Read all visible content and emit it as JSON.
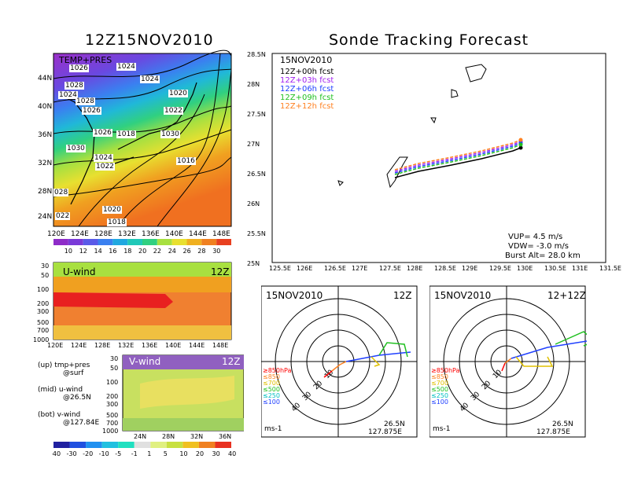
{
  "titles": {
    "left": "12Z15NOV2010",
    "right": "Sonde Tracking Forecast"
  },
  "map_panel": {
    "label": "TEMP+PRES",
    "lat_ticks": [
      "44N",
      "40N",
      "36N",
      "32N",
      "28N",
      "24N"
    ],
    "lon_ticks": [
      "120E",
      "124E",
      "128E",
      "132E",
      "136E",
      "140E",
      "144E",
      "148E"
    ],
    "isobars": [
      "1026",
      "1024",
      "1028",
      "1024",
      "1020",
      "1024",
      "1028",
      "1026",
      "1022",
      "1030",
      "1026",
      "1018",
      "1030",
      "1024",
      "1022",
      "1016",
      "028",
      "1020",
      "022",
      "1018"
    ],
    "colorbar": [
      "10",
      "12",
      "14",
      "16",
      "18",
      "20",
      "22",
      "24",
      "26",
      "28",
      "30"
    ]
  },
  "uwind_panel": {
    "label": "U-wind",
    "time": "12Z",
    "p_ticks": [
      "30",
      "50",
      "100",
      "200",
      "300",
      "500",
      "700",
      "1000"
    ],
    "lon_ticks": [
      "120E",
      "124E",
      "128E",
      "132E",
      "136E",
      "140E",
      "144E",
      "148E"
    ]
  },
  "vwind_panel": {
    "label": "V-wind",
    "time": "12Z",
    "p_ticks": [
      "30",
      "50",
      "100",
      "200",
      "300",
      "500",
      "700",
      "1000"
    ],
    "lat_ticks": [
      "24N",
      "28N",
      "32N",
      "36N"
    ],
    "colorbar": [
      "-40",
      "-30",
      "-20",
      "-10",
      "-5",
      "-1",
      "1",
      "5",
      "10",
      "20",
      "30",
      "40"
    ]
  },
  "legend_notes": [
    {
      "line1": "(up) tmp+pres",
      "line2": "@surf"
    },
    {
      "line1": "(mid) u-wind",
      "line2": "@26.5N"
    },
    {
      "line1": "(bot) v-wind",
      "line2": "@127.84E"
    }
  ],
  "track_panel": {
    "date": "15NOV2010",
    "forecasts": [
      {
        "label": "12Z+00h  fcst",
        "color": "#000000"
      },
      {
        "label": "12Z+03h  fcst",
        "color": "#a020f0"
      },
      {
        "label": "12Z+06h  fcst",
        "color": "#2040ff"
      },
      {
        "label": "12Z+09h  fcst",
        "color": "#20c020"
      },
      {
        "label": "12Z+12h  fcst",
        "color": "#ff8020"
      }
    ],
    "lat_ticks": [
      "28.5N",
      "28N",
      "27.5N",
      "27N",
      "26.5N",
      "26N",
      "25.5N",
      "25N"
    ],
    "lon_ticks": [
      "125.5E",
      "126E",
      "126.5E",
      "127E",
      "127.5E",
      "128E",
      "128.5E",
      "129E",
      "129.5E",
      "130E",
      "130.5E",
      "131E",
      "131.5E"
    ],
    "vup": "VUP=  4.5  m/s",
    "vdw": "VDW= -3.0  m/s",
    "burst": "Burst Alt=  28.0  km"
  },
  "hodo_left": {
    "date": "15NOV2010",
    "time": "12Z",
    "lat": "26.5N",
    "lon": "127.875E",
    "unit": "ms-1",
    "rings": [
      "10",
      "20",
      "30",
      "40"
    ],
    "levels": [
      {
        "label": "≥850hPa",
        "color": "#ff0000"
      },
      {
        "label": "≤850",
        "color": "#ff8020"
      },
      {
        "label": "≤700",
        "color": "#e0c000"
      },
      {
        "label": "≤500",
        "color": "#20c020"
      },
      {
        "label": "≤250",
        "color": "#00c0c0"
      },
      {
        "label": "≤100",
        "color": "#2040ff"
      }
    ]
  },
  "hodo_right": {
    "date": "15NOV2010",
    "time": "12+12Z",
    "lat": "26.5N",
    "lon": "127.875E",
    "unit": "ms-1",
    "rings": [
      "10",
      "20",
      "30",
      "40"
    ],
    "levels": [
      {
        "label": "≥850hPa",
        "color": "#ff0000"
      },
      {
        "label": "≤850",
        "color": "#ff8020"
      },
      {
        "label": "≤700",
        "color": "#e0c000"
      },
      {
        "label": "≤500",
        "color": "#20c020"
      },
      {
        "label": "≤250",
        "color": "#00c0c0"
      },
      {
        "label": "≤100",
        "color": "#2040ff"
      }
    ]
  }
}
